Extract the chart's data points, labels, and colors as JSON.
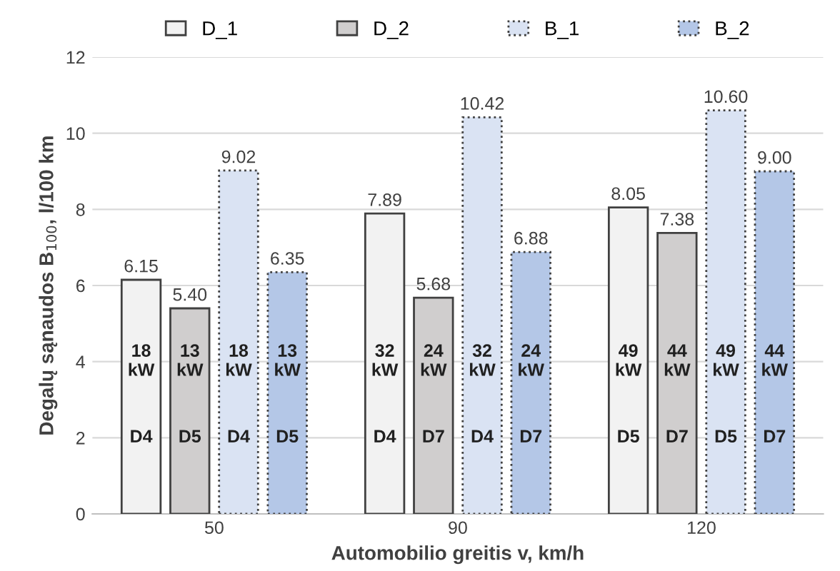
{
  "chart_data": {
    "type": "bar",
    "xlabel": "Automobilio greitis v, km/h",
    "ylabel": "Degalų sąnaudos B$_{100}$, l/100 km",
    "categories": [
      "50",
      "90",
      "120"
    ],
    "series": [
      {
        "name": "D_1",
        "color": "#f2f2f2",
        "line_style": "solid",
        "values": [
          6.15,
          7.89,
          8.05
        ],
        "value_labels": [
          "6.15",
          "7.89",
          "8.05"
        ]
      },
      {
        "name": "D_2",
        "color": "#d0cece",
        "line_style": "solid",
        "values": [
          5.4,
          5.68,
          7.38
        ],
        "value_labels": [
          "5.40",
          "5.68",
          "7.38"
        ]
      },
      {
        "name": "B_1",
        "color": "#dae3f3",
        "line_style": "dotted",
        "values": [
          9.02,
          10.42,
          10.6
        ],
        "value_labels": [
          "9.02",
          "10.42",
          "10.60"
        ]
      },
      {
        "name": "B_2",
        "color": "#b4c7e7",
        "line_style": "dotted",
        "values": [
          6.35,
          6.88,
          9.0
        ],
        "value_labels": [
          "6.35",
          "6.88",
          "9.00"
        ]
      }
    ],
    "annotations": [
      "18\nkW",
      "D4",
      "13\nkW",
      "D5",
      "18\nkW",
      "D4",
      "13\nkW",
      "D5",
      "32\nkW",
      "D4",
      "24\nkW",
      "D7",
      "32\nkW",
      "D4",
      "24\nkW",
      "D7",
      "49\nkW",
      "D5",
      "44\nkW",
      "D7",
      "49\nkW",
      "D5",
      "44\nkW",
      "D7"
    ],
    "ylim": [
      0,
      12
    ],
    "yticks": [
      0,
      2,
      4,
      6,
      8,
      10,
      12
    ],
    "grid": "y",
    "legend": "top"
  }
}
